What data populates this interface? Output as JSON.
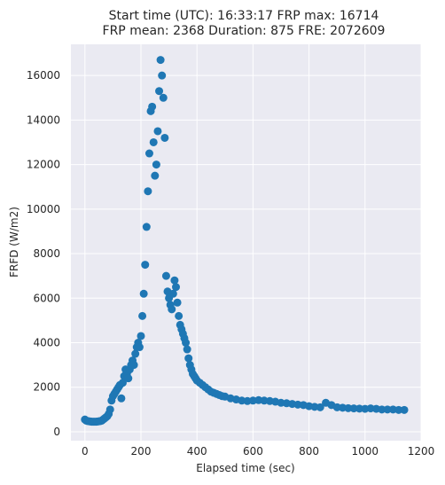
{
  "chart_data": {
    "type": "scatter",
    "title_line1": "Start time (UTC): 16:33:17 FRP max: 16714",
    "title_line2": "FRP mean: 2368 Duration: 875 FRE: 2072609",
    "xlabel": "Elapsed time (sec)",
    "ylabel": "FRFD (W/m2)",
    "xlim": [
      -50,
      1200
    ],
    "ylim": [
      -400,
      17400
    ],
    "xticks": [
      0,
      200,
      400,
      600,
      800,
      1000,
      1200
    ],
    "yticks": [
      0,
      2000,
      4000,
      6000,
      8000,
      10000,
      12000,
      14000,
      16000
    ],
    "grid": true,
    "colors": {
      "background": "#eaeaf2",
      "grid": "#ffffff",
      "marker": "#1f77b4"
    },
    "x": [
      0,
      5,
      10,
      15,
      20,
      25,
      30,
      35,
      40,
      45,
      50,
      55,
      60,
      65,
      70,
      75,
      80,
      85,
      90,
      95,
      100,
      105,
      110,
      115,
      120,
      125,
      130,
      135,
      140,
      145,
      150,
      155,
      160,
      165,
      170,
      175,
      180,
      185,
      190,
      195,
      200,
      205,
      210,
      215,
      220,
      225,
      230,
      235,
      240,
      245,
      250,
      255,
      260,
      265,
      270,
      275,
      280,
      285,
      290,
      295,
      300,
      305,
      310,
      315,
      320,
      325,
      330,
      335,
      340,
      345,
      350,
      355,
      360,
      365,
      370,
      375,
      380,
      385,
      390,
      395,
      400,
      410,
      420,
      430,
      440,
      450,
      460,
      470,
      480,
      490,
      500,
      520,
      540,
      560,
      580,
      600,
      620,
      640,
      660,
      680,
      700,
      720,
      740,
      760,
      780,
      800,
      820,
      840,
      860,
      880,
      900,
      920,
      940,
      960,
      980,
      1000,
      1020,
      1040,
      1060,
      1080,
      1100,
      1120,
      1140
    ],
    "values": [
      550,
      500,
      480,
      470,
      460,
      450,
      450,
      450,
      450,
      460,
      470,
      480,
      500,
      550,
      600,
      650,
      700,
      800,
      1000,
      1400,
      1600,
      1700,
      1800,
      1900,
      2000,
      2100,
      1500,
      2200,
      2500,
      2800,
      2600,
      2400,
      2800,
      3000,
      3200,
      3000,
      3500,
      3800,
      4000,
      3800,
      4300,
      5200,
      6200,
      7500,
      9200,
      10800,
      12500,
      14400,
      14600,
      13000,
      11500,
      12000,
      13500,
      15300,
      16700,
      16000,
      15000,
      13200,
      7000,
      6300,
      6000,
      5700,
      5500,
      6200,
      6800,
      6500,
      5800,
      5200,
      4800,
      4600,
      4400,
      4200,
      4000,
      3700,
      3300,
      3000,
      2800,
      2600,
      2500,
      2400,
      2300,
      2200,
      2100,
      2000,
      1900,
      1800,
      1750,
      1700,
      1650,
      1600,
      1580,
      1500,
      1450,
      1400,
      1380,
      1400,
      1420,
      1400,
      1380,
      1350,
      1300,
      1280,
      1250,
      1220,
      1200,
      1150,
      1120,
      1100,
      1300,
      1200,
      1100,
      1080,
      1060,
      1050,
      1040,
      1030,
      1050,
      1030,
      1000,
      1000,
      1000,
      980,
      980
    ]
  }
}
